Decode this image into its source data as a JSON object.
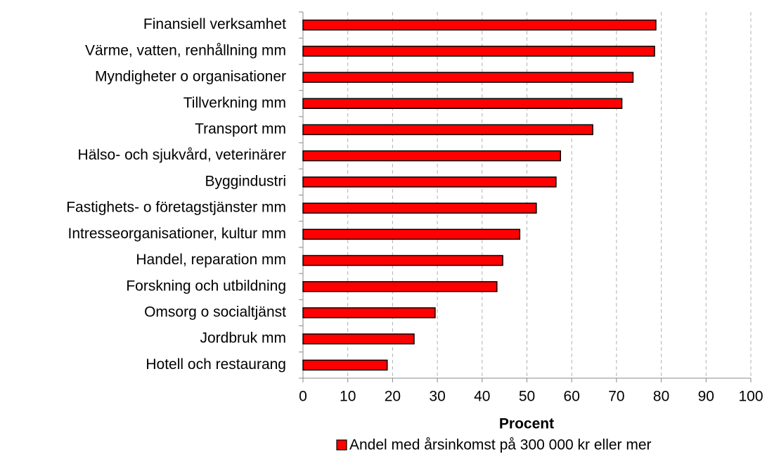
{
  "chart_data": {
    "type": "bar",
    "orientation": "horizontal",
    "x_label": "Procent",
    "categories": [
      "Finansiell verksamhet",
      "Värme, vatten, renhållning mm",
      "Myndigheter o organisationer",
      "Tillverkning mm",
      "Transport mm",
      "Hälso- och sjukvård, veterinärer",
      "Byggindustri",
      "Fastighets- o företagstjänster mm",
      "Intresseorganisationer, kultur mm",
      "Handel, reparation mm",
      "Forskning och utbildning",
      "Omsorg o socialtjänst",
      "Jordbruk mm",
      "Hotell och restaurang"
    ],
    "series": [
      {
        "name": "Andel med årsinkomst på 300 000 kr eller mer",
        "color": "#ff0000",
        "values": [
          78.8,
          78.5,
          73.7,
          71.2,
          64.7,
          57.5,
          56.5,
          52.1,
          48.4,
          44.6,
          43.3,
          29.5,
          24.8,
          18.8
        ]
      }
    ],
    "xlim": [
      0,
      100
    ],
    "xticks": [
      0,
      10,
      20,
      30,
      40,
      50,
      60,
      70,
      80,
      90,
      100
    ],
    "grid": true,
    "legend": "bottom"
  }
}
